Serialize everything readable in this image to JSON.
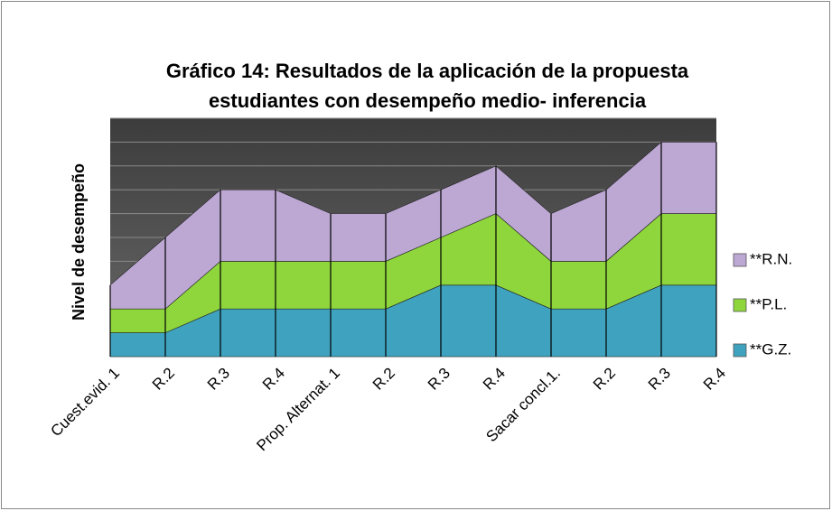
{
  "chart_data": {
    "type": "stacked_area",
    "title": [
      "Gráfico 14: Resultados de la aplicación de la propuesta",
      "estudiantes con desempeño medio- inferencia"
    ],
    "y_label": "Nivel de desempeño",
    "categories": [
      "Cuest.evid. 1",
      "R.2",
      "R.3",
      "R.4",
      "Prop. Alternat. 1",
      "R.2",
      "R.3",
      "R.4",
      "Sacar concl.1.",
      "R.2",
      "R.3",
      "R.4"
    ],
    "series": [
      {
        "name": "**G.Z.",
        "color": "#3fa3bf",
        "values": [
          1,
          1,
          2,
          2,
          2,
          2,
          3,
          3,
          2,
          2,
          3,
          3
        ]
      },
      {
        "name": "**P.L.",
        "color": "#8fd63c",
        "values": [
          1,
          1,
          2,
          2,
          2,
          2,
          2,
          3,
          2,
          2,
          3,
          3
        ]
      },
      {
        "name": "**R.N.",
        "color": "#bca8d3",
        "values": [
          1,
          3,
          3,
          3,
          2,
          2,
          2,
          2,
          2,
          3,
          3,
          3
        ]
      }
    ],
    "ylim": [
      0,
      10
    ],
    "yticks": [
      0,
      1,
      2,
      3,
      4,
      5,
      6,
      7,
      8,
      9,
      10
    ],
    "grid": true,
    "legend": "right"
  }
}
